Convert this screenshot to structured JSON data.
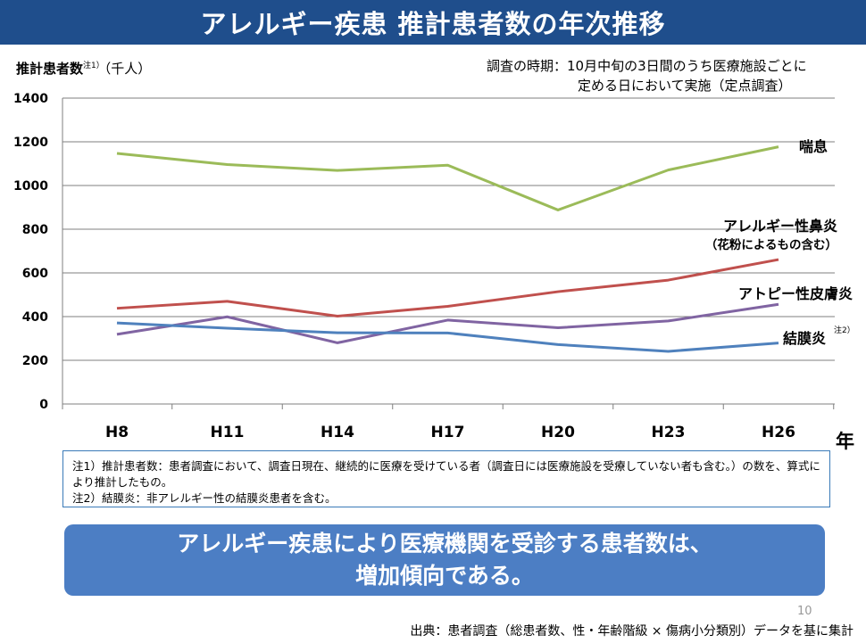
{
  "header": {
    "title": "アレルギー疾患 推計患者数の年次推移"
  },
  "survey_note": {
    "line1": "調査の時期：10月中旬の3日間のうち医療施設ごとに",
    "line2": "定める日において実施（定点調査）"
  },
  "chart_data": {
    "type": "line",
    "ylabel": "推計患者数",
    "ylabel_note": "注1）",
    "ylabel_unit": "（千人）",
    "xunit": "年",
    "categories": [
      "H8",
      "H11",
      "H14",
      "H17",
      "H20",
      "H23",
      "H26"
    ],
    "yticks": [
      0,
      200,
      400,
      600,
      800,
      1000,
      1200,
      1400
    ],
    "ylim": [
      0,
      1400
    ],
    "grid": true,
    "series": [
      {
        "name": "喘息",
        "sublabel": "",
        "note": "",
        "color": "#9bbb59",
        "values": [
          1147,
          1096,
          1069,
          1093,
          888,
          1071,
          1177
        ]
      },
      {
        "name": "アレルギー性鼻炎",
        "sublabel": "（花粉によるもの含む）",
        "note": "",
        "color": "#c0504d",
        "values": [
          438,
          470,
          402,
          447,
          514,
          567,
          661
        ]
      },
      {
        "name": "アトピー性皮膚炎",
        "sublabel": "",
        "note": "",
        "color": "#8064a2",
        "values": [
          319,
          399,
          280,
          384,
          349,
          380,
          456
        ]
      },
      {
        "name": "結膜炎",
        "sublabel": "",
        "note": "注2）",
        "color": "#4f81bd",
        "values": [
          371,
          347,
          326,
          325,
          272,
          241,
          279
        ]
      }
    ]
  },
  "notes": {
    "note1": "注1）推計患者数：患者調査において、調査日現在、継続的に医療を受けている者（調査日には医療施設を受療していない者も含む。）の数を、算式により推計したもの。",
    "note2": "注2）結膜炎：非アレルギー性の結膜炎患者を含む。"
  },
  "conclusion": {
    "line1": "アレルギー疾患により医療機関を受診する患者数は、",
    "line2": "増加傾向である。"
  },
  "page_number": "10",
  "source": "出典：患者調査（総患者数、性・年齢階級 × 傷病小分類別）データを基に集計"
}
